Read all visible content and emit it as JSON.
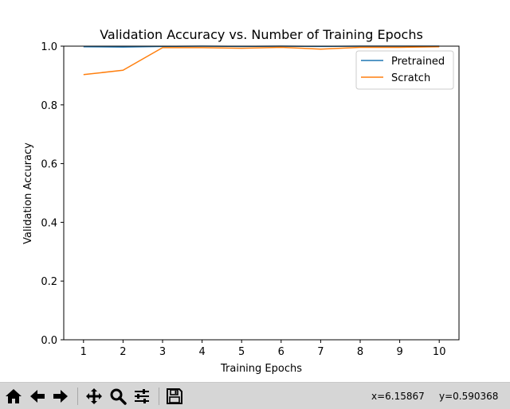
{
  "chart_data": {
    "type": "line",
    "title": "Validation Accuracy vs. Number of Training Epochs",
    "xlabel": "Training Epochs",
    "ylabel": "Validation Accuracy",
    "xlim": [
      0.5,
      10.5
    ],
    "ylim": [
      0.0,
      1.0
    ],
    "x": [
      1,
      2,
      3,
      4,
      5,
      6,
      7,
      8,
      9,
      10
    ],
    "xticks": [
      1,
      2,
      3,
      4,
      5,
      6,
      7,
      8,
      9,
      10
    ],
    "xtick_labels": [
      "1",
      "2",
      "3",
      "4",
      "5",
      "6",
      "7",
      "8",
      "9",
      "10"
    ],
    "yticks": [
      0.0,
      0.2,
      0.4,
      0.6,
      0.8,
      1.0
    ],
    "ytick_labels": [
      "0.0",
      "0.2",
      "0.4",
      "0.6",
      "0.8",
      "1.0"
    ],
    "grid": false,
    "legend_position": "top-right",
    "series": [
      {
        "name": "Pretrained",
        "color": "#1f77b4",
        "values": [
          0.998,
          0.997,
          0.999,
          1.0,
          0.999,
          1.0,
          0.999,
          1.0,
          1.0,
          1.0
        ]
      },
      {
        "name": "Scratch",
        "color": "#ff7f0e",
        "values": [
          0.903,
          0.918,
          0.995,
          0.995,
          0.993,
          0.996,
          0.99,
          0.996,
          0.996,
          0.998
        ]
      }
    ]
  },
  "toolbar": {
    "buttons": [
      {
        "name": "home-button",
        "icon": "home-icon"
      },
      {
        "name": "back-button",
        "icon": "arrow-left-icon"
      },
      {
        "name": "forward-button",
        "icon": "arrow-right-icon"
      },
      {
        "name": "pan-button",
        "icon": "move-icon"
      },
      {
        "name": "zoom-button",
        "icon": "magnifier-icon"
      },
      {
        "name": "configure-subplots-button",
        "icon": "sliders-icon"
      },
      {
        "name": "save-button",
        "icon": "floppy-disk-icon"
      }
    ],
    "coord_x": "x=6.15867",
    "coord_y": "y=0.590368"
  }
}
